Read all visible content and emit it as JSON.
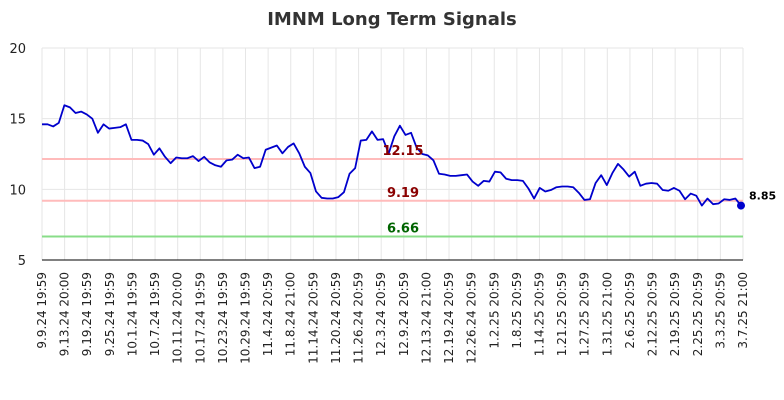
{
  "chart_data": {
    "type": "line",
    "title": "IMNM Long Term Signals",
    "xlabel": "",
    "ylabel": "",
    "ylim": [
      5,
      20
    ],
    "yticks": [
      5,
      10,
      15,
      20
    ],
    "grid": true,
    "line_color": "#0000cc",
    "xtick_labels": [
      "9.9.24 19:59",
      "9.13.24 20:00",
      "9.19.24 19:59",
      "9.25.24 19:59",
      "10.1.24 19:59",
      "10.7.24 19:59",
      "10.11.24 20:00",
      "10.17.24 19:59",
      "10.23.24 19:59",
      "10.29.24 19:59",
      "11.4.24 20:59",
      "11.8.24 21:00",
      "11.14.24 20:59",
      "11.20.24 20:59",
      "11.26.24 20:59",
      "12.3.24 20:59",
      "12.9.24 20:59",
      "12.13.24 21:00",
      "12.19.24 20:59",
      "12.26.24 20:59",
      "1.2.25 20:59",
      "1.8.25 20:59",
      "1.14.25 20:59",
      "1.21.25 20:59",
      "1.27.25 20:59",
      "1.31.25 21:00",
      "2.6.25 20:59",
      "2.12.25 20:59",
      "2.19.25 20:59",
      "2.25.25 20:59",
      "3.3.25 20:59",
      "3.7.25 21:00"
    ],
    "horizontal_lines": [
      {
        "value": 12.15,
        "label": "12.15",
        "line_color": "#ffbbbb",
        "label_color": "#8b0000"
      },
      {
        "value": 9.19,
        "label": "9.19",
        "line_color": "#ffbbbb",
        "label_color": "#8b0000"
      },
      {
        "value": 6.66,
        "label": "6.66",
        "line_color": "#88dd88",
        "label_color": "#006400"
      }
    ],
    "last_value_label": "8.85",
    "values": [
      14.6,
      14.6,
      14.45,
      14.7,
      15.95,
      15.8,
      15.4,
      15.5,
      15.3,
      15.0,
      14.0,
      14.6,
      14.3,
      14.35,
      14.4,
      14.6,
      13.5,
      13.5,
      13.45,
      13.2,
      12.45,
      12.9,
      12.3,
      11.85,
      12.25,
      12.2,
      12.2,
      12.35,
      12.0,
      12.3,
      11.9,
      11.7,
      11.6,
      12.05,
      12.1,
      12.45,
      12.2,
      12.25,
      11.5,
      11.6,
      12.8,
      12.95,
      13.1,
      12.55,
      13.0,
      13.25,
      12.55,
      11.6,
      11.15,
      9.85,
      9.4,
      9.35,
      9.35,
      9.45,
      9.8,
      11.1,
      11.5,
      13.45,
      13.5,
      14.1,
      13.5,
      13.55,
      12.55,
      13.75,
      14.5,
      13.85,
      14.0,
      12.95,
      12.5,
      12.4,
      12.05,
      11.1,
      11.05,
      10.95,
      10.95,
      11.0,
      11.05,
      10.55,
      10.25,
      10.6,
      10.55,
      11.25,
      11.2,
      10.75,
      10.65,
      10.65,
      10.6,
      10.05,
      9.35,
      10.1,
      9.85,
      9.95,
      10.15,
      10.2,
      10.2,
      10.15,
      9.75,
      9.25,
      9.3,
      10.45,
      11.0,
      10.3,
      11.15,
      11.8,
      11.4,
      10.9,
      11.25,
      10.25,
      10.4,
      10.45,
      10.4,
      9.95,
      9.9,
      10.1,
      9.9,
      9.3,
      9.7,
      9.55,
      8.85,
      9.35,
      8.95,
      9.0,
      9.3,
      9.25,
      9.35,
      8.85
    ]
  }
}
